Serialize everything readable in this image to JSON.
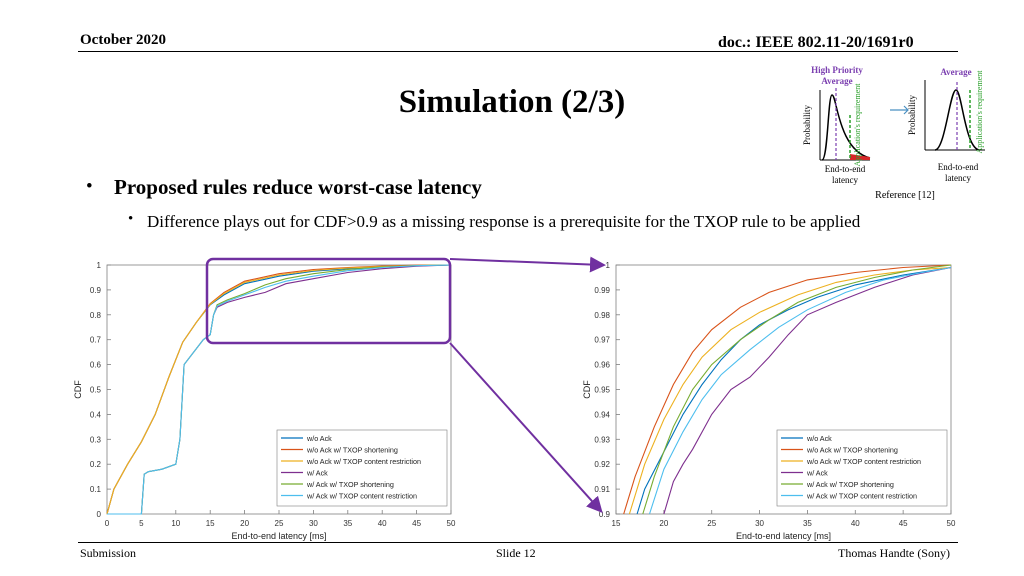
{
  "header": {
    "date": "October 2020",
    "doc": "doc.: IEEE 802.11-20/1691r0"
  },
  "slide": {
    "title": "Simulation (2/3)",
    "bullet1": "Proposed rules reduce worst-case latency",
    "bullet2": "Difference plays out for CDF>0.9 as a missing response is a prerequisite for the TXOP rule to be applied",
    "bullet_mark": "•",
    "sub_mark": "•"
  },
  "inset": {
    "left_top1": "High Priority",
    "left_top2": "Average",
    "left_y": "Probability",
    "left_req": "Application's requirement",
    "left_x1": "End-to-end",
    "left_x2": "latency",
    "right_top": "Average",
    "right_y": "Probability",
    "right_req": "Application's requirement",
    "right_x1": "End-to-end",
    "right_x2": "latency",
    "reference": "Reference [12]",
    "accent_purple": "#7b3fb0",
    "accent_green": "#2ca02c",
    "accent_red": "#d62728"
  },
  "footer": {
    "left": "Submission",
    "center": "Slide 12",
    "right": "Thomas Handte (Sony)"
  },
  "colors": {
    "highlight": "#7030a0"
  },
  "chart_data": [
    {
      "type": "line",
      "xlabel": "End-to-end latency [ms]",
      "ylabel": "CDF",
      "xlim": [
        0,
        50
      ],
      "ylim": [
        0,
        1
      ],
      "xticks": [
        0,
        5,
        10,
        15,
        20,
        25,
        30,
        35,
        40,
        45,
        50
      ],
      "yticks": [
        0,
        0.1,
        0.2,
        0.3,
        0.4,
        0.5,
        0.6,
        0.7,
        0.8,
        0.9,
        1
      ],
      "ytick_labels": [
        "0",
        "0.1",
        "0.2",
        "0.3",
        "0.4",
        "0.5",
        "0.6",
        "0.7",
        "0.8",
        "0.9",
        "1"
      ],
      "legend_position": "lower-right",
      "series": [
        {
          "name": "w/o Ack",
          "color": "#0072bd",
          "x": [
            0,
            1,
            3,
            5,
            7,
            9,
            11,
            13,
            15,
            17,
            20,
            25,
            30,
            35,
            40,
            45,
            50
          ],
          "y": [
            0,
            0.1,
            0.2,
            0.29,
            0.4,
            0.55,
            0.69,
            0.77,
            0.84,
            0.88,
            0.925,
            0.955,
            0.975,
            0.985,
            0.992,
            0.997,
            1
          ]
        },
        {
          "name": "w/o Ack w/ TXOP shortening",
          "color": "#d95319",
          "x": [
            0,
            1,
            3,
            5,
            7,
            9,
            11,
            13,
            15,
            17,
            20,
            25,
            30,
            35,
            40,
            45,
            50
          ],
          "y": [
            0,
            0.1,
            0.2,
            0.29,
            0.4,
            0.55,
            0.69,
            0.77,
            0.845,
            0.89,
            0.935,
            0.965,
            0.982,
            0.99,
            0.996,
            0.999,
            1
          ]
        },
        {
          "name": "w/o Ack w/ TXOP content restriction",
          "color": "#edb120",
          "x": [
            0,
            1,
            3,
            5,
            7,
            9,
            11,
            13,
            15,
            17,
            20,
            25,
            30,
            35,
            40,
            45,
            50
          ],
          "y": [
            0,
            0.1,
            0.2,
            0.29,
            0.4,
            0.55,
            0.69,
            0.77,
            0.842,
            0.885,
            0.93,
            0.96,
            0.978,
            0.988,
            0.994,
            0.998,
            1
          ]
        },
        {
          "name": "w/ Ack",
          "color": "#7e2f8e",
          "x": [
            0,
            5,
            5.4,
            6,
            8,
            10,
            10.6,
            11.2,
            14,
            15,
            15.5,
            16,
            17.5,
            20,
            23,
            26,
            30,
            35,
            40,
            45,
            50
          ],
          "y": [
            0,
            0,
            0.16,
            0.17,
            0.18,
            0.2,
            0.3,
            0.6,
            0.7,
            0.72,
            0.8,
            0.83,
            0.85,
            0.87,
            0.89,
            0.925,
            0.945,
            0.97,
            0.985,
            0.995,
            1
          ]
        },
        {
          "name": "w/ Ack w/ TXOP shortening",
          "color": "#77ac30",
          "x": [
            0,
            5,
            5.4,
            6,
            8,
            10,
            10.6,
            11.2,
            14,
            15,
            15.5,
            16,
            17.5,
            20,
            23,
            26,
            30,
            35,
            40,
            45,
            50
          ],
          "y": [
            0,
            0,
            0.16,
            0.17,
            0.18,
            0.2,
            0.3,
            0.6,
            0.7,
            0.72,
            0.8,
            0.84,
            0.86,
            0.885,
            0.92,
            0.945,
            0.965,
            0.982,
            0.992,
            0.998,
            1
          ]
        },
        {
          "name": "w/ Ack w/ TXOP content restriction",
          "color": "#4dbeee",
          "x": [
            0,
            5,
            5.4,
            6,
            8,
            10,
            10.6,
            11.2,
            14,
            15,
            15.5,
            16,
            17.5,
            20,
            23,
            26,
            30,
            35,
            40,
            45,
            50
          ],
          "y": [
            0,
            0,
            0.16,
            0.17,
            0.18,
            0.2,
            0.3,
            0.6,
            0.7,
            0.72,
            0.8,
            0.835,
            0.855,
            0.88,
            0.91,
            0.935,
            0.955,
            0.977,
            0.99,
            0.997,
            1
          ]
        }
      ]
    },
    {
      "type": "line",
      "xlabel": "End-to-end latency [ms]",
      "ylabel": "CDF",
      "xlim": [
        15,
        50
      ],
      "ylim": [
        0.9,
        1
      ],
      "xticks": [
        15,
        20,
        25,
        30,
        35,
        40,
        45,
        50
      ],
      "yticks": [
        0.9,
        0.91,
        0.92,
        0.93,
        0.94,
        0.95,
        0.96,
        0.97,
        0.98,
        0.99,
        1
      ],
      "ytick_labels": [
        "0.9",
        "0.91",
        "0.92",
        "0.93",
        "0.94",
        "0.95",
        "0.96",
        "0.97",
        "0.98",
        "0.99",
        "1"
      ],
      "legend_position": "lower-right",
      "series": [
        {
          "name": "w/o Ack",
          "color": "#0072bd",
          "x": [
            17.2,
            18,
            20,
            22,
            24,
            26,
            28,
            30,
            33,
            36,
            40,
            45,
            50
          ],
          "y": [
            0.9,
            0.91,
            0.925,
            0.94,
            0.952,
            0.962,
            0.97,
            0.976,
            0.982,
            0.987,
            0.992,
            0.996,
            0.999
          ]
        },
        {
          "name": "w/o Ack w/ TXOP shortening",
          "color": "#d95319",
          "x": [
            15.8,
            17,
            19,
            21,
            23,
            25,
            28,
            31,
            35,
            40,
            45,
            50
          ],
          "y": [
            0.9,
            0.915,
            0.935,
            0.952,
            0.965,
            0.974,
            0.983,
            0.989,
            0.994,
            0.997,
            0.999,
            1
          ]
        },
        {
          "name": "w/o Ack w/ TXOP content restriction",
          "color": "#edb120",
          "x": [
            16.4,
            18,
            20,
            22,
            24,
            27,
            30,
            34,
            38,
            42,
            46,
            50
          ],
          "y": [
            0.9,
            0.92,
            0.938,
            0.952,
            0.963,
            0.974,
            0.981,
            0.988,
            0.993,
            0.996,
            0.998,
            0.999
          ]
        },
        {
          "name": "w/ Ack",
          "color": "#7e2f8e",
          "x": [
            20,
            21,
            22,
            23,
            25,
            27,
            29,
            31,
            33,
            35,
            38,
            42,
            46,
            50
          ],
          "y": [
            0.9,
            0.913,
            0.92,
            0.926,
            0.94,
            0.95,
            0.955,
            0.963,
            0.972,
            0.98,
            0.985,
            0.991,
            0.996,
            0.999
          ]
        },
        {
          "name": "w/ Ack w/ TXOP shortening",
          "color": "#77ac30",
          "x": [
            17.8,
            19,
            21,
            23,
            25,
            28,
            31,
            34,
            38,
            42,
            46,
            50
          ],
          "y": [
            0.9,
            0.915,
            0.935,
            0.95,
            0.96,
            0.97,
            0.978,
            0.985,
            0.991,
            0.995,
            0.998,
            1
          ]
        },
        {
          "name": "w/ Ack w/ TXOP content restriction",
          "color": "#4dbeee",
          "x": [
            18.5,
            20,
            22,
            24,
            26,
            29,
            32,
            35,
            39,
            43,
            47,
            50
          ],
          "y": [
            0.9,
            0.918,
            0.933,
            0.946,
            0.956,
            0.966,
            0.975,
            0.982,
            0.989,
            0.994,
            0.997,
            0.999
          ]
        }
      ]
    }
  ]
}
